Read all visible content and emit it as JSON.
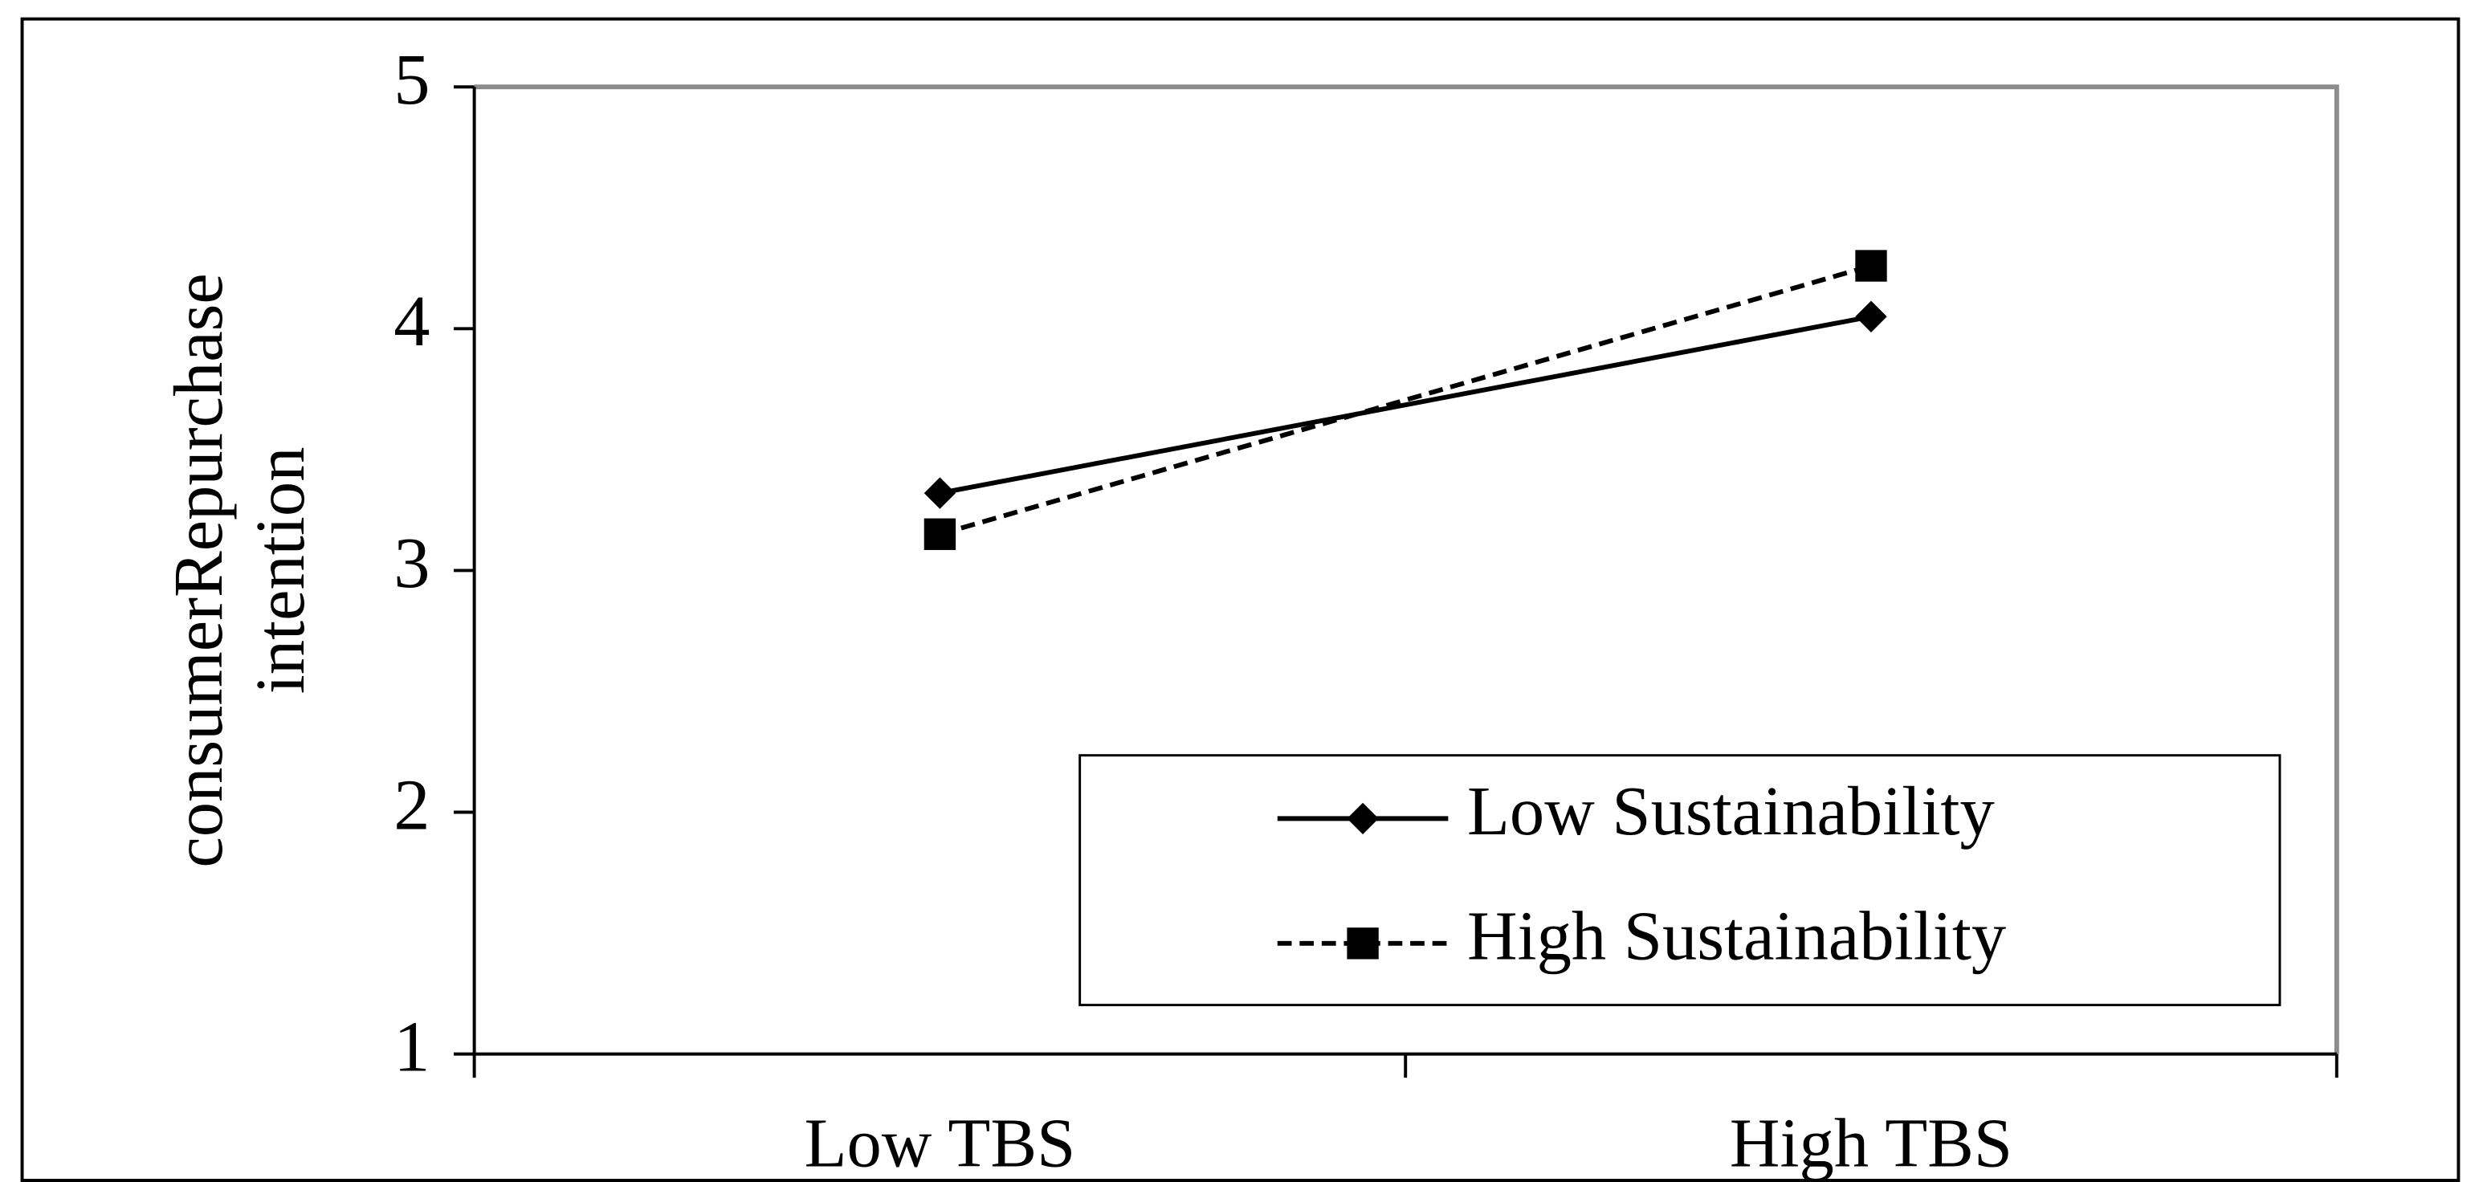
{
  "chart_data": {
    "type": "line",
    "ylabel": [
      "consumerRepurchase",
      "intention"
    ],
    "categories": [
      "Low TBS",
      "High TBS"
    ],
    "series": [
      {
        "name": "Low Sustainability",
        "color": "#000000",
        "marker": "diamond",
        "dashed": false,
        "values": [
          3.32,
          4.05
        ]
      },
      {
        "name": "High Sustainability",
        "color": "#000000",
        "marker": "square",
        "dashed": true,
        "values": [
          3.15,
          4.26
        ]
      }
    ],
    "ylim": [
      1,
      5
    ],
    "yticks": [
      1,
      2,
      3,
      4,
      5
    ],
    "grid": false,
    "legend": "lower right"
  }
}
